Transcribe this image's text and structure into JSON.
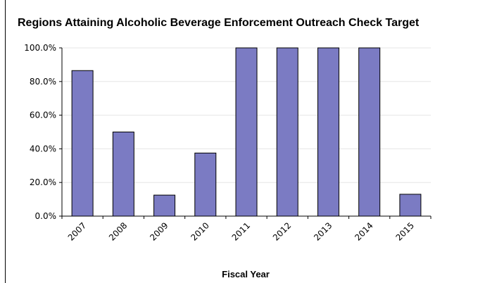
{
  "chart_data": {
    "type": "bar",
    "title": "Regions Attaining Alcoholic Beverage Enforcement Outreach Check Target",
    "xlabel": "Fiscal Year",
    "ylabel": "",
    "categories": [
      "2007",
      "2008",
      "2009",
      "2010",
      "2011",
      "2012",
      "2013",
      "2014",
      "2015"
    ],
    "values": [
      86.5,
      50.0,
      12.5,
      37.5,
      100.0,
      100.0,
      100.0,
      100.0,
      13.0
    ],
    "ylim": [
      0,
      100
    ],
    "yticks": [
      "0.0%",
      "20.0%",
      "40.0%",
      "60.0%",
      "80.0%",
      "100.0%"
    ],
    "ytick_values": [
      0,
      20,
      40,
      60,
      80,
      100
    ],
    "grid": true,
    "bar_color": "#7b7bc3"
  }
}
